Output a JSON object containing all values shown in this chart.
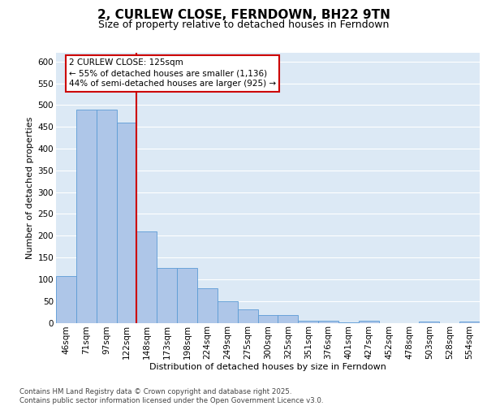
{
  "title": "2, CURLEW CLOSE, FERNDOWN, BH22 9TN",
  "subtitle": "Size of property relative to detached houses in Ferndown",
  "xlabel": "Distribution of detached houses by size in Ferndown",
  "ylabel": "Number of detached properties",
  "footer_line1": "Contains HM Land Registry data © Crown copyright and database right 2025.",
  "footer_line2": "Contains public sector information licensed under the Open Government Licence v3.0.",
  "categories": [
    "46sqm",
    "71sqm",
    "97sqm",
    "122sqm",
    "148sqm",
    "173sqm",
    "198sqm",
    "224sqm",
    "249sqm",
    "275sqm",
    "300sqm",
    "325sqm",
    "351sqm",
    "376sqm",
    "401sqm",
    "427sqm",
    "452sqm",
    "478sqm",
    "503sqm",
    "528sqm",
    "554sqm"
  ],
  "values": [
    107,
    490,
    490,
    460,
    210,
    125,
    125,
    80,
    50,
    30,
    18,
    18,
    5,
    5,
    1,
    5,
    0,
    0,
    2,
    0,
    2
  ],
  "bar_color": "#aec6e8",
  "bar_edge_color": "#5b9bd5",
  "annotation_line1": "2 CURLEW CLOSE: 125sqm",
  "annotation_line2": "← 55% of detached houses are smaller (1,136)",
  "annotation_line3": "44% of semi-detached houses are larger (925) →",
  "vline_color": "#cc0000",
  "annotation_box_edgecolor": "#cc0000",
  "plot_bg_color": "#dce9f5",
  "ylim": [
    0,
    620
  ],
  "yticks": [
    0,
    50,
    100,
    150,
    200,
    250,
    300,
    350,
    400,
    450,
    500,
    550,
    600
  ],
  "title_fontsize": 11,
  "subtitle_fontsize": 9,
  "axis_label_fontsize": 8,
  "tick_fontsize": 7.5,
  "annotation_fontsize": 7.5,
  "footer_fontsize": 6.2
}
